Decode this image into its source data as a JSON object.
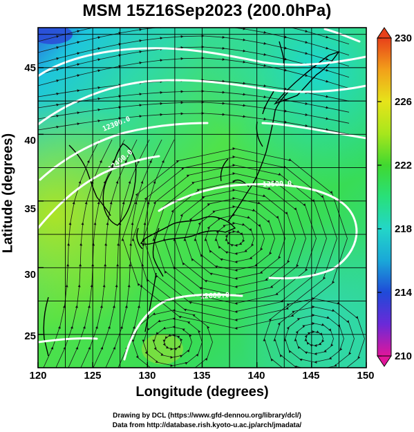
{
  "title": "MSM 15Z16Sep2023 (200.0hPa)",
  "x_axis": {
    "label": "Longitude (degrees)",
    "range": [
      120,
      150
    ],
    "ticks": [
      "120",
      "125",
      "130",
      "135",
      "140",
      "145",
      "150"
    ]
  },
  "y_axis": {
    "label": "Latitude  (degrees)",
    "range": [
      22.5,
      48
    ],
    "ticks": [
      "25",
      "30",
      "35",
      "40",
      "45"
    ]
  },
  "colorbar": {
    "range": [
      210,
      230
    ],
    "ticks": [
      "230",
      "226",
      "222",
      "218",
      "214",
      "210"
    ],
    "colors": [
      "#e0169a",
      "#6a2ad8",
      "#1f4ad8",
      "#1aa8d8",
      "#23d6c8",
      "#28e07a",
      "#40d830",
      "#a8e61c",
      "#e6e41a",
      "#f2a01a",
      "#e8401a"
    ]
  },
  "contour_labels": [
    "12600.0",
    "12500.0",
    "12400.0",
    "12300.0"
  ],
  "credits": {
    "line1": "Drawing by DCL (https://www.gfd-dennou.org/library/dcl/)",
    "line2": "Data from http://database.rish.kyoto-u.ac.jp/arch/jmadata/"
  }
}
